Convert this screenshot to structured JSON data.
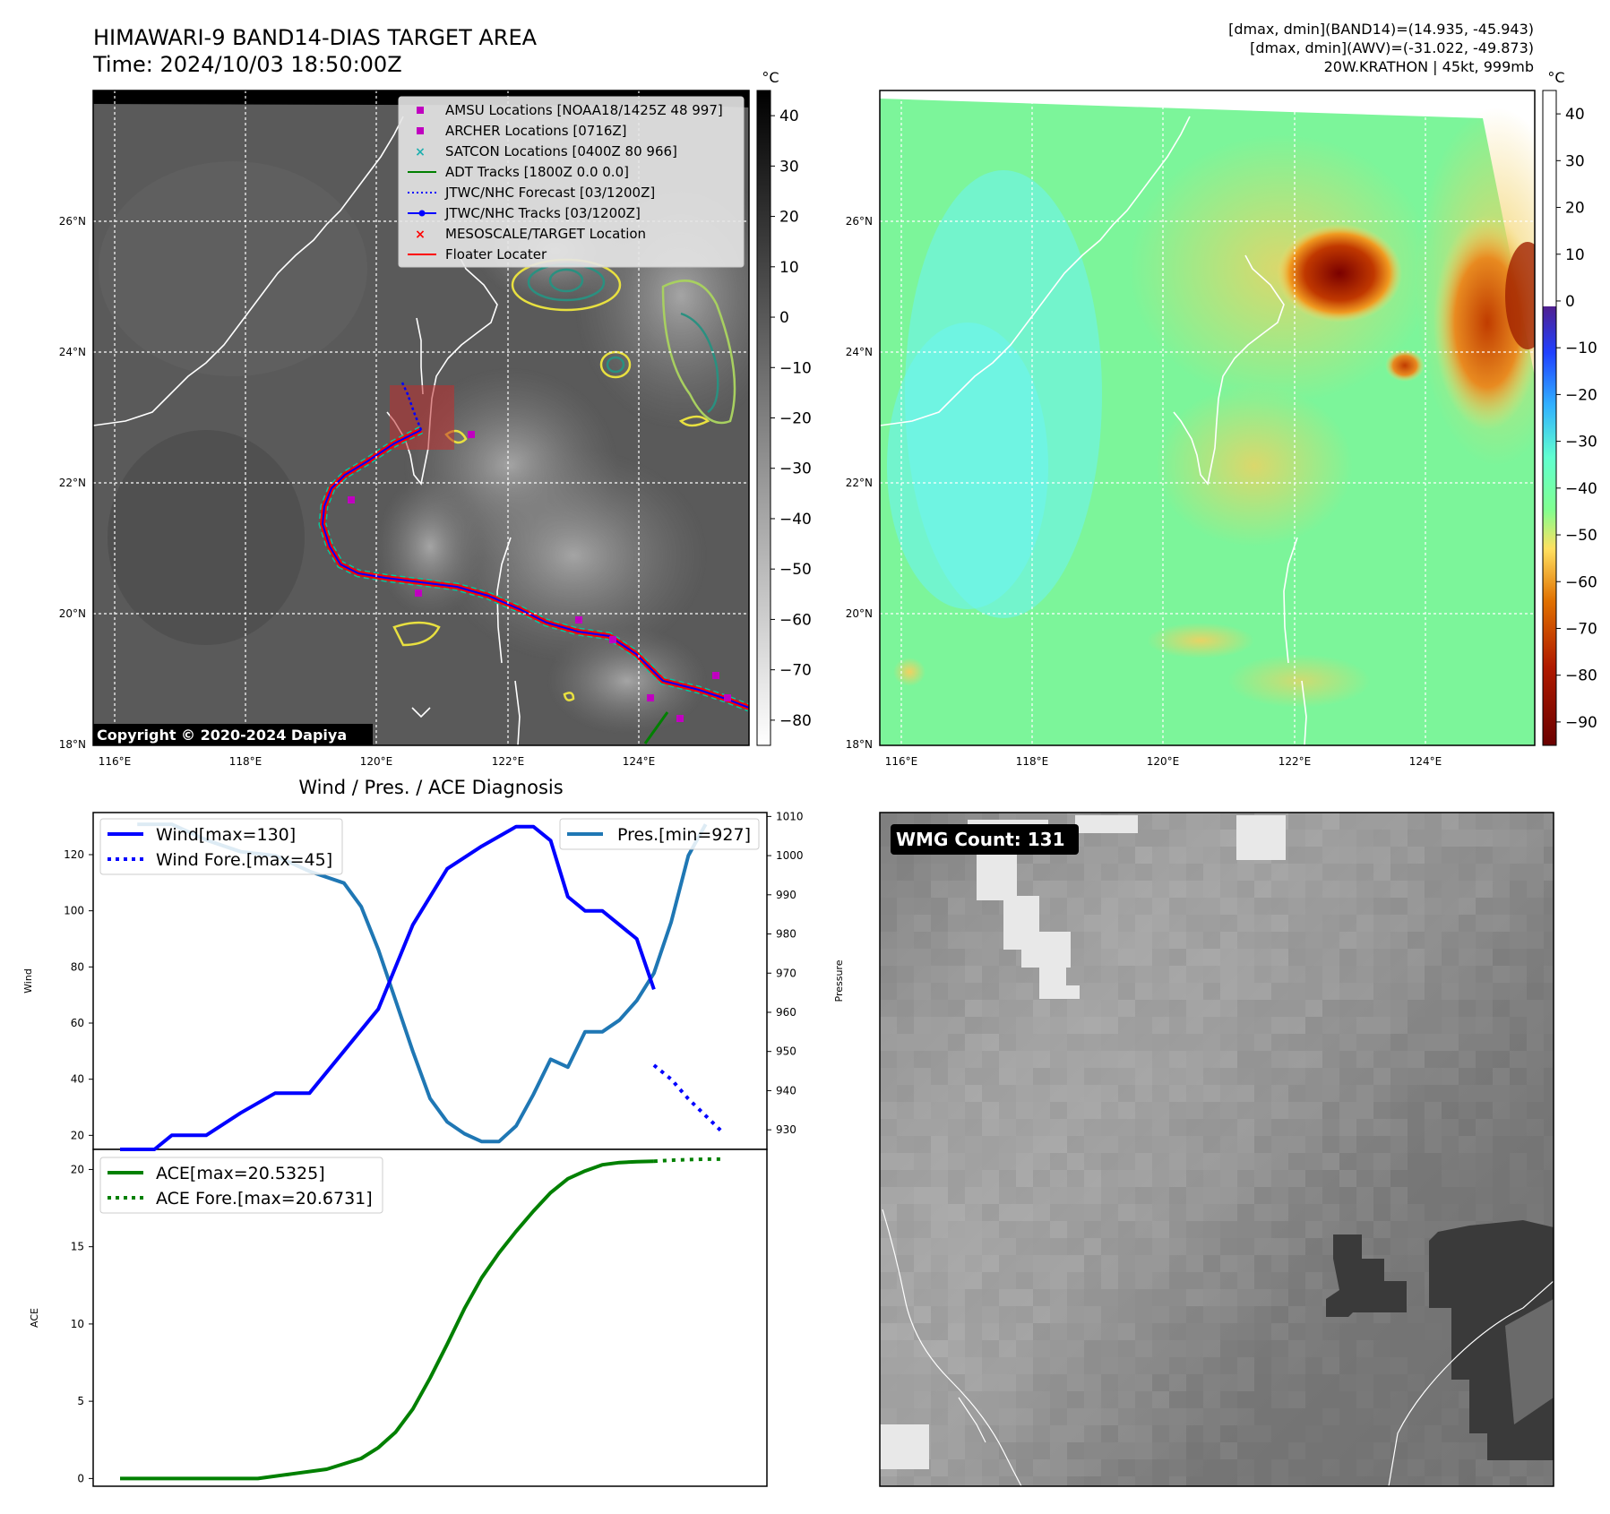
{
  "header": {
    "title": "HIMAWARI-9 BAND14-DIAS TARGET AREA",
    "time": "Time: 2024/10/03 18:50:00Z",
    "dmax_band14": "[dmax, dmin](BAND14)=(14.935, -45.943)",
    "dmax_awv": "[dmax, dmin](AWV)=(-31.022, -49.873)",
    "storm": "20W.KRATHON | 45kt, 999mb"
  },
  "map": {
    "lat_labels": [
      "26°N",
      "24°N",
      "22°N",
      "20°N",
      "18°N"
    ],
    "lon_labels": [
      "116°E",
      "118°E",
      "120°E",
      "122°E",
      "124°E"
    ],
    "copyright": "Copyright © 2020-2024 Dapiya",
    "colorbar_unit": "°C",
    "ir_colorbar_ticks": [
      "40",
      "30",
      "20",
      "10",
      "0",
      "−10",
      "−20",
      "−30",
      "−40",
      "−50",
      "−60",
      "−70",
      "−80"
    ],
    "wv_colorbar_ticks": [
      "40",
      "30",
      "20",
      "10",
      "0",
      "−10",
      "−20",
      "−30",
      "−40",
      "−50",
      "−60",
      "−70",
      "−80",
      "−90"
    ],
    "legend": [
      {
        "label": "AMSU Locations [NOAA18/1425Z 48 997]",
        "color": "#c000c0",
        "marker": "square"
      },
      {
        "label": "ARCHER Locations [0716Z]",
        "color": "#c000c0",
        "marker": "square"
      },
      {
        "label": "SATCON Locations [0400Z 80 966]",
        "color": "#20b0b0",
        "marker": "x"
      },
      {
        "label": "ADT Tracks [1800Z 0.0 0.0]",
        "color": "#008000",
        "marker": "line"
      },
      {
        "label": "JTWC/NHC Forecast [03/1200Z]",
        "color": "#0000ff",
        "marker": "dotted"
      },
      {
        "label": "JTWC/NHC Tracks [03/1200Z]",
        "color": "#0000ff",
        "marker": "line-dot"
      },
      {
        "label": "MESOSCALE/TARGET Location",
        "color": "#ff0000",
        "marker": "x"
      },
      {
        "label": "Floater Locater",
        "color": "#ff0000",
        "marker": "line"
      }
    ]
  },
  "diagnosis": {
    "title": "Wind / Pres. / ACE Diagnosis",
    "wind_axis_label": "Wind",
    "pressure_axis_label": "Pressure",
    "ace_axis_label": "ACE",
    "wind_legend": "Wind[max=130]",
    "wind_fore_legend": "Wind Fore.[max=45]",
    "pres_legend": "Pres.[min=927]",
    "ace_legend": "ACE[max=20.5325]",
    "ace_fore_legend": "ACE Fore.[max=20.6731]",
    "wind_ticks": [
      "20",
      "40",
      "60",
      "80",
      "100",
      "120"
    ],
    "pressure_ticks": [
      "930",
      "940",
      "950",
      "960",
      "970",
      "980",
      "990",
      "1000",
      "1010"
    ],
    "ace_ticks": [
      "0",
      "5",
      "10",
      "15",
      "20"
    ]
  },
  "wmg": {
    "label": "WMG Count: 131"
  },
  "chart_data": [
    {
      "type": "line",
      "title": "Wind / Pres. / ACE Diagnosis",
      "x": [
        0,
        1,
        2,
        3,
        4,
        5,
        6,
        7,
        8,
        9,
        10,
        11,
        12,
        13,
        14,
        15,
        16,
        17,
        18,
        19,
        20,
        21,
        22,
        23,
        24,
        25,
        26,
        27,
        28,
        29,
        30,
        31,
        32,
        33,
        34,
        35
      ],
      "ylabel": "Wind",
      "ylim": [
        15,
        135
      ],
      "series": [
        {
          "name": "Wind[max=130]",
          "color": "#0000ff",
          "style": "solid",
          "x": [
            0,
            2,
            3,
            5,
            7,
            9,
            11,
            13,
            15,
            17,
            19,
            21,
            23,
            24,
            25,
            26,
            27,
            28,
            29,
            30,
            31
          ],
          "values": [
            15,
            15,
            20,
            20,
            28,
            35,
            35,
            50,
            65,
            95,
            115,
            123,
            130,
            130,
            125,
            105,
            100,
            100,
            95,
            90,
            72
          ]
        },
        {
          "name": "Wind Fore.[max=45]",
          "color": "#0000ff",
          "style": "dotted",
          "x": [
            31,
            32,
            33,
            34,
            35
          ],
          "values": [
            45,
            40,
            33,
            27,
            21
          ]
        }
      ]
    },
    {
      "type": "line",
      "ylabel": "Pressure",
      "ylim": [
        925,
        1011
      ],
      "series": [
        {
          "name": "Pres.[min=927]",
          "color": "#1f77b4",
          "style": "solid",
          "x": [
            1,
            3,
            5,
            7,
            9,
            11,
            13,
            14,
            15,
            16,
            17,
            18,
            19,
            20,
            21,
            22,
            23,
            24,
            25,
            26,
            27,
            28,
            29,
            30,
            31,
            32,
            33,
            34
          ],
          "values": [
            1008,
            1008,
            1004,
            1001,
            1000,
            996,
            993,
            987,
            976,
            963,
            950,
            938,
            932,
            929,
            927,
            927,
            931,
            939,
            948,
            946,
            955,
            955,
            958,
            963,
            970,
            983,
            1000,
            1008
          ]
        }
      ]
    },
    {
      "type": "line",
      "ylabel": "ACE",
      "ylim": [
        -0.5,
        21.3
      ],
      "series": [
        {
          "name": "ACE[max=20.5325]",
          "color": "#008000",
          "style": "solid",
          "x": [
            0,
            4,
            8,
            10,
            12,
            14,
            15,
            16,
            17,
            18,
            19,
            20,
            21,
            22,
            23,
            24,
            25,
            26,
            27,
            28,
            29,
            30,
            31
          ],
          "values": [
            0,
            0,
            0,
            0.3,
            0.6,
            1.3,
            2.0,
            3.0,
            4.5,
            6.5,
            8.7,
            11.0,
            13.0,
            14.6,
            16.0,
            17.3,
            18.5,
            19.4,
            19.9,
            20.3,
            20.45,
            20.5,
            20.53
          ]
        },
        {
          "name": "ACE Fore.[max=20.6731]",
          "color": "#008000",
          "style": "dotted",
          "x": [
            31,
            32,
            33,
            34,
            35
          ],
          "values": [
            20.53,
            20.6,
            20.64,
            20.67,
            20.67
          ]
        }
      ]
    }
  ]
}
